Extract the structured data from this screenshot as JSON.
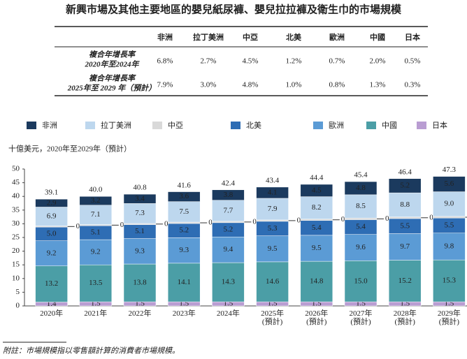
{
  "title": "新興市場及其他主要地區的嬰兒紙尿褲、嬰兒拉拉褲及衛生巾的市場規模",
  "table": {
    "headers": [
      "非洲",
      "拉丁美洲",
      "中亞",
      "北美",
      "歐洲",
      "中國",
      "日本"
    ],
    "rows": [
      {
        "label": [
          "複合年增長率",
          "2020年至2024年"
        ],
        "values": [
          "6.8%",
          "2.7%",
          "4.5%",
          "1.2%",
          "0.7%",
          "2.0%",
          "0.5%"
        ]
      },
      {
        "label": [
          "複合年增長率",
          "2025年至 2029 年（預計）"
        ],
        "values": [
          "7.9%",
          "3.0%",
          "4.8%",
          "1.0%",
          "0.8%",
          "1.3%",
          "0.3%"
        ]
      }
    ]
  },
  "chart_data": {
    "type": "stacked_bar",
    "y_label": "十億美元，2020年至2029年（預計）",
    "categories": [
      "2020年",
      "2021年",
      "2022年",
      "2023年",
      "2024年",
      "2025年\n(預計)",
      "2026年\n(預計)",
      "2027年\n(預計)",
      "2028年\n(預計)",
      "2029年\n(預計)"
    ],
    "ylim": [
      0,
      50
    ],
    "yticks": [
      0,
      5,
      10,
      15,
      20,
      25,
      30,
      35,
      40,
      45,
      50
    ],
    "series": [
      {
        "name": "非洲",
        "color": "#1b3a5e",
        "values": [
          2.9,
          3.2,
          3.4,
          3.6,
          3.8,
          4.1,
          4.5,
          4.8,
          5.2,
          5.6
        ],
        "value_labels": [
          "2.9",
          "3.2",
          "3.4",
          "3.6",
          "3.8",
          "4.1",
          "4.5",
          "4.8",
          "5.2",
          "5.6"
        ]
      },
      {
        "name": "拉丁美洲",
        "color": "#bdd7ee",
        "values": [
          6.9,
          7.1,
          7.3,
          7.5,
          7.7,
          7.9,
          8.2,
          8.5,
          8.8,
          9.0
        ],
        "value_labels": [
          "6.9",
          "7.1",
          "7.3",
          "7.5",
          "7.7",
          "7.9",
          "8.2",
          "8.5",
          "8.8",
          "9.0"
        ]
      },
      {
        "name": "中亞",
        "color": "#d9d9d9",
        "values": [
          0.4,
          0.4,
          0.4,
          0.5,
          0.5,
          0.5,
          0.5,
          0.6,
          0.6,
          0.6
        ],
        "value_labels": [
          "0.4",
          "0.4",
          "0.4",
          "0.5",
          "0.5",
          "0.5",
          "0.5",
          "0.6",
          "0.6",
          "0.6"
        ],
        "label_outside": true
      },
      {
        "name": "北美",
        "color": "#2e6db4",
        "values": [
          5.0,
          5.1,
          5.1,
          5.2,
          5.2,
          5.3,
          5.4,
          5.4,
          5.5,
          5.5
        ],
        "value_labels": [
          "5.0",
          "5.1",
          "5.1",
          "5.2",
          "5.2",
          "5.3",
          "5.4",
          "5.4",
          "5.5",
          "5.5"
        ]
      },
      {
        "name": "歐洲",
        "color": "#5b9bd5",
        "values": [
          9.2,
          9.2,
          9.3,
          9.3,
          9.4,
          9.5,
          9.5,
          9.6,
          9.7,
          9.8
        ],
        "value_labels": [
          "9.2",
          "9.2",
          "9.3",
          "9.3",
          "9.4",
          "9.5",
          "9.5",
          "9.6",
          "9.7",
          "9.8"
        ]
      },
      {
        "name": "中國",
        "color": "#4b9ea6",
        "values": [
          13.2,
          13.5,
          13.8,
          14.1,
          14.3,
          14.6,
          14.8,
          15.0,
          15.2,
          15.3
        ],
        "value_labels": [
          "13.2",
          "13.5",
          "13.8",
          "14.1",
          "14.3",
          "14.6",
          "14.8",
          "15.0",
          "15.2",
          "15.3"
        ]
      },
      {
        "name": "日本",
        "color": "#b99dd2",
        "values": [
          1.4,
          1.5,
          1.5,
          1.5,
          1.5,
          1.5,
          1.5,
          1.5,
          1.5,
          1.5
        ],
        "value_labels": [
          "1.4",
          "1.5",
          "1.5",
          "1.5",
          "1.5",
          "1.5",
          "1.5",
          "1.5",
          "1.5",
          "1.5"
        ]
      }
    ],
    "totals": [
      39.1,
      40.0,
      40.8,
      41.6,
      42.4,
      43.4,
      44.4,
      45.4,
      46.4,
      47.3
    ],
    "total_labels": [
      "39.1",
      "40.0",
      "40.8",
      "41.6",
      "42.4",
      "43.4",
      "44.4",
      "45.4",
      "46.4",
      "47.3"
    ]
  },
  "footnote": "附註：市場規模指以零售額計算的消費者市場規模。"
}
